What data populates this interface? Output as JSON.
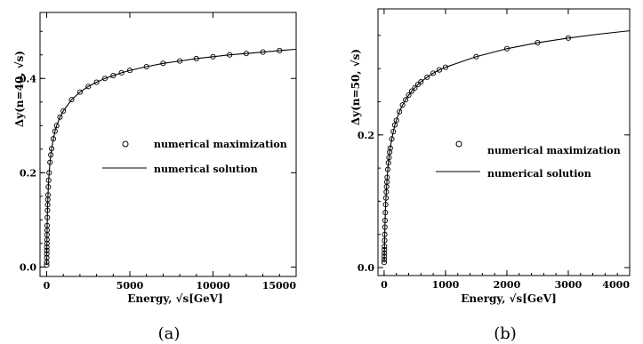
{
  "chart_data": [
    {
      "type": "scatter",
      "caption": "(a)",
      "xlabel": "Energy, √s[GeV]",
      "ylabel": "Δy(n=40, √s)",
      "xlim": [
        -400,
        15000
      ],
      "ylim": [
        -0.02,
        0.54
      ],
      "xticks": [
        0,
        5000,
        10000,
        15000
      ],
      "xtick_labels": [
        "0",
        "5000",
        "10000",
        "15000"
      ],
      "yticks": [
        0.0,
        0.2,
        0.4
      ],
      "ytick_labels": [
        "0.0",
        "0.2",
        "0.4"
      ],
      "legend": {
        "placement": "middle-left"
      },
      "series": [
        {
          "name": "numerical maximization",
          "marker": "circle",
          "x": [
            1,
            2,
            4,
            6,
            8,
            10,
            13,
            16,
            20,
            25,
            30,
            40,
            50,
            60,
            70,
            80,
            100,
            120,
            150,
            200,
            250,
            300,
            400,
            500,
            600,
            800,
            1000,
            1500,
            2000,
            2500,
            3000,
            3500,
            4000,
            4500,
            5000,
            6000,
            7000,
            8000,
            9000,
            10000,
            11000,
            12000,
            13000,
            14000
          ],
          "y": [
            0.004,
            0.01,
            0.02,
            0.028,
            0.035,
            0.042,
            0.05,
            0.058,
            0.068,
            0.078,
            0.088,
            0.105,
            0.12,
            0.132,
            0.143,
            0.153,
            0.17,
            0.184,
            0.2,
            0.222,
            0.238,
            0.251,
            0.272,
            0.288,
            0.3,
            0.318,
            0.331,
            0.355,
            0.371,
            0.383,
            0.392,
            0.4,
            0.406,
            0.412,
            0.417,
            0.425,
            0.432,
            0.437,
            0.442,
            0.446,
            0.45,
            0.453,
            0.456,
            0.459
          ]
        },
        {
          "name": "numerical solution",
          "marker": "line",
          "x": [
            1,
            2,
            4,
            6,
            8,
            10,
            13,
            16,
            20,
            25,
            30,
            40,
            50,
            60,
            70,
            80,
            100,
            120,
            150,
            200,
            250,
            300,
            400,
            500,
            600,
            800,
            1000,
            1500,
            2000,
            2500,
            3000,
            3500,
            4000,
            4500,
            5000,
            6000,
            7000,
            8000,
            9000,
            10000,
            11000,
            12000,
            13000,
            14000,
            15000
          ],
          "y": [
            0.004,
            0.01,
            0.02,
            0.028,
            0.035,
            0.042,
            0.05,
            0.058,
            0.068,
            0.078,
            0.088,
            0.105,
            0.12,
            0.132,
            0.143,
            0.153,
            0.17,
            0.184,
            0.2,
            0.222,
            0.238,
            0.251,
            0.272,
            0.288,
            0.3,
            0.318,
            0.331,
            0.355,
            0.371,
            0.383,
            0.392,
            0.4,
            0.406,
            0.412,
            0.417,
            0.425,
            0.432,
            0.437,
            0.442,
            0.446,
            0.45,
            0.453,
            0.456,
            0.459,
            0.462
          ]
        }
      ]
    },
    {
      "type": "scatter",
      "caption": "(b)",
      "xlabel": "Energy, √s[GeV]",
      "ylabel": "Δy(n=50, √s)",
      "xlim": [
        -100,
        4000
      ],
      "ylim": [
        -0.012,
        0.39
      ],
      "xticks": [
        0,
        1000,
        2000,
        3000,
        4000
      ],
      "xtick_labels": [
        "0",
        "1000",
        "2000",
        "3000",
        "4000"
      ],
      "yticks": [
        0.0,
        0.2
      ],
      "ytick_labels": [
        "0.0",
        "0.2"
      ],
      "legend": {
        "placement": "middle-left"
      },
      "series": [
        {
          "name": "numerical maximization",
          "marker": "circle",
          "x": [
            1,
            2,
            3,
            4,
            5,
            6,
            8,
            10,
            13,
            16,
            20,
            25,
            30,
            35,
            40,
            45,
            50,
            60,
            70,
            80,
            90,
            100,
            125,
            150,
            175,
            200,
            250,
            300,
            350,
            400,
            450,
            500,
            550,
            600,
            700,
            800,
            900,
            1000,
            1500,
            2000,
            2500,
            3000
          ],
          "y": [
            0.008,
            0.012,
            0.017,
            0.022,
            0.027,
            0.032,
            0.041,
            0.05,
            0.061,
            0.071,
            0.083,
            0.095,
            0.105,
            0.114,
            0.122,
            0.129,
            0.136,
            0.148,
            0.158,
            0.166,
            0.174,
            0.18,
            0.194,
            0.205,
            0.215,
            0.222,
            0.235,
            0.245,
            0.253,
            0.26,
            0.266,
            0.271,
            0.276,
            0.28,
            0.287,
            0.293,
            0.298,
            0.302,
            0.318,
            0.33,
            0.339,
            0.346
          ]
        },
        {
          "name": "numerical solution",
          "marker": "line",
          "x": [
            1,
            2,
            3,
            4,
            5,
            6,
            8,
            10,
            13,
            16,
            20,
            25,
            30,
            35,
            40,
            45,
            50,
            60,
            70,
            80,
            90,
            100,
            125,
            150,
            175,
            200,
            250,
            300,
            350,
            400,
            450,
            500,
            550,
            600,
            700,
            800,
            900,
            1000,
            1500,
            2000,
            2500,
            3000,
            3500,
            4000
          ],
          "y": [
            0.008,
            0.012,
            0.017,
            0.022,
            0.027,
            0.032,
            0.041,
            0.05,
            0.061,
            0.071,
            0.083,
            0.095,
            0.105,
            0.114,
            0.122,
            0.129,
            0.136,
            0.148,
            0.158,
            0.166,
            0.174,
            0.18,
            0.194,
            0.205,
            0.215,
            0.222,
            0.235,
            0.245,
            0.253,
            0.26,
            0.266,
            0.271,
            0.276,
            0.28,
            0.287,
            0.293,
            0.298,
            0.302,
            0.318,
            0.33,
            0.339,
            0.346,
            0.352,
            0.357
          ]
        }
      ]
    }
  ]
}
